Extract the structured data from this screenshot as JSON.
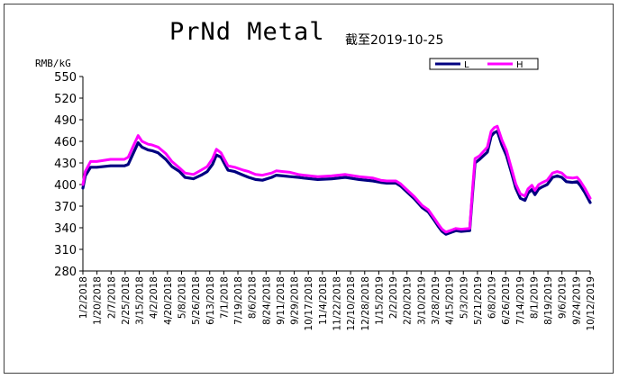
{
  "chart_data": {
    "type": "line",
    "title": "PrNd Metal",
    "subtitle": "截至2019-10-25",
    "ylabel": "RMB/kG",
    "xlabel": "",
    "ylim": [
      280,
      550
    ],
    "yticks": [
      280,
      310,
      340,
      370,
      400,
      430,
      460,
      490,
      520,
      550
    ],
    "grid": false,
    "legend_position": "top-right",
    "x_tick_labels": [
      "1/2/2018",
      "1/20/2018",
      "2/7/2018",
      "2/25/2018",
      "3/15/2018",
      "4/2/2018",
      "4/20/2018",
      "5/8/2018",
      "5/26/2018",
      "6/13/2018",
      "7/1/2018",
      "7/19/2018",
      "8/6/2018",
      "8/24/2018",
      "9/11/2018",
      "9/29/2018",
      "10/17/2018",
      "11/4/2018",
      "11/22/2018",
      "12/10/2018",
      "12/28/2018",
      "1/15/2019",
      "2/2/2019",
      "2/20/2019",
      "3/10/2019",
      "3/28/2019",
      "4/15/2019",
      "5/3/2019",
      "5/21/2019",
      "6/8/2019",
      "6/26/2019",
      "7/14/2019",
      "8/1/2019",
      "8/19/2019",
      "9/6/2019",
      "9/24/2019",
      "10/12/2019"
    ],
    "x": [
      "2018-01-02",
      "2018-01-05",
      "2018-01-12",
      "2018-01-20",
      "2018-02-07",
      "2018-02-25",
      "2018-03-02",
      "2018-03-08",
      "2018-03-15",
      "2018-03-20",
      "2018-03-28",
      "2018-04-02",
      "2018-04-10",
      "2018-04-20",
      "2018-04-28",
      "2018-05-08",
      "2018-05-15",
      "2018-05-26",
      "2018-06-05",
      "2018-06-13",
      "2018-06-20",
      "2018-06-25",
      "2018-07-01",
      "2018-07-05",
      "2018-07-10",
      "2018-07-19",
      "2018-07-30",
      "2018-08-06",
      "2018-08-15",
      "2018-08-24",
      "2018-09-05",
      "2018-09-11",
      "2018-09-20",
      "2018-09-29",
      "2018-10-10",
      "2018-10-17",
      "2018-11-04",
      "2018-11-22",
      "2018-12-10",
      "2018-12-28",
      "2019-01-15",
      "2019-01-25",
      "2019-02-02",
      "2019-02-14",
      "2019-02-20",
      "2019-02-28",
      "2019-03-10",
      "2019-03-20",
      "2019-03-28",
      "2019-04-05",
      "2019-04-10",
      "2019-04-15",
      "2019-04-20",
      "2019-04-28",
      "2019-05-03",
      "2019-05-10",
      "2019-05-21",
      "2019-05-25",
      "2019-05-28",
      "2019-06-03",
      "2019-06-08",
      "2019-06-13",
      "2019-06-18",
      "2019-06-22",
      "2019-06-26",
      "2019-07-02",
      "2019-07-08",
      "2019-07-14",
      "2019-07-20",
      "2019-07-26",
      "2019-08-01",
      "2019-08-05",
      "2019-08-10",
      "2019-08-14",
      "2019-08-19",
      "2019-08-24",
      "2019-08-30",
      "2019-09-06",
      "2019-09-12",
      "2019-09-18",
      "2019-09-24",
      "2019-10-02",
      "2019-10-08",
      "2019-10-12",
      "2019-10-18",
      "2019-10-25"
    ],
    "series": [
      {
        "name": "L",
        "color": "#000080",
        "values": [
          395,
          412,
          424,
          424,
          426,
          426,
          428,
          442,
          458,
          452,
          448,
          447,
          444,
          435,
          425,
          418,
          410,
          408,
          413,
          418,
          428,
          441,
          438,
          430,
          420,
          418,
          413,
          410,
          407,
          406,
          410,
          413,
          412,
          411,
          410,
          409,
          407,
          408,
          410,
          407,
          405,
          403,
          402,
          402,
          398,
          390,
          380,
          368,
          362,
          350,
          342,
          335,
          331,
          334,
          336,
          335,
          336,
          392,
          430,
          435,
          440,
          445,
          467,
          472,
          474,
          455,
          440,
          418,
          395,
          381,
          378,
          388,
          393,
          386,
          394,
          397,
          400,
          410,
          412,
          410,
          404,
          403,
          404,
          399,
          389,
          375
        ]
      },
      {
        "name": "H",
        "color": "#ff00ff",
        "values": [
          400,
          418,
          432,
          432,
          435,
          435,
          438,
          452,
          468,
          460,
          456,
          455,
          452,
          443,
          432,
          423,
          416,
          414,
          420,
          425,
          436,
          449,
          444,
          436,
          426,
          424,
          420,
          418,
          414,
          413,
          416,
          419,
          418,
          417,
          414,
          413,
          411,
          412,
          414,
          411,
          409,
          406,
          405,
          405,
          401,
          393,
          383,
          371,
          365,
          353,
          345,
          338,
          334,
          337,
          339,
          338,
          339,
          398,
          436,
          440,
          446,
          452,
          474,
          479,
          481,
          462,
          447,
          424,
          401,
          387,
          384,
          394,
          399,
          392,
          400,
          403,
          406,
          416,
          418,
          416,
          410,
          409,
          410,
          405,
          395,
          381
        ]
      }
    ]
  }
}
